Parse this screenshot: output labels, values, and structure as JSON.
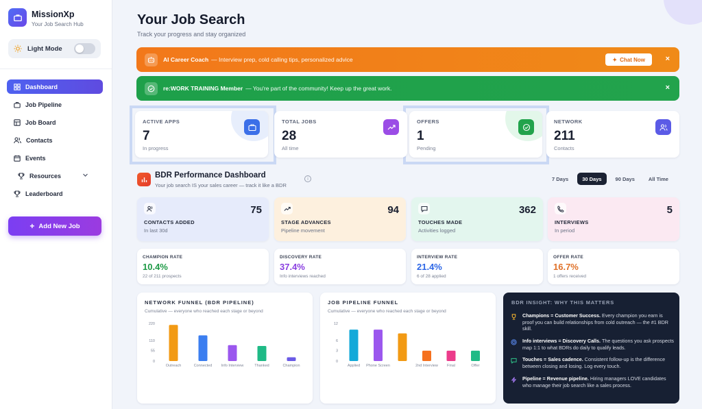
{
  "sidebar": {
    "brand": "MissionXp",
    "brand_sub": "Your Job Search Hub",
    "mode_label": "Light Mode",
    "items": [
      {
        "label": "Dashboard",
        "icon": "dashboard-icon"
      },
      {
        "label": "Job Pipeline",
        "icon": "briefcase-icon"
      },
      {
        "label": "Job Board",
        "icon": "board-icon"
      },
      {
        "label": "Contacts",
        "icon": "users-icon"
      },
      {
        "label": "Events",
        "icon": "calendar-icon"
      },
      {
        "label": "Resources",
        "icon": "trophy-icon"
      },
      {
        "label": "Leaderboard",
        "icon": "trophy-icon"
      }
    ],
    "add_button": "Add New Job"
  },
  "header": {
    "title": "Your Job Search",
    "subtitle": "Track your progress and stay organized"
  },
  "banners": {
    "coach": {
      "title": "AI Career Coach",
      "text": "— Interview prep, cold calling tips, personalized advice",
      "button": "Chat Now",
      "close": "×"
    },
    "member": {
      "title": "re:WORK TRAINING Member",
      "text": "— You're part of the community! Keep up the great work.",
      "close": "×"
    }
  },
  "stats": [
    {
      "label": "ACTIVE APPS",
      "value": "7",
      "sub": "In progress",
      "color": "#3b6fe8"
    },
    {
      "label": "TOTAL JOBS",
      "value": "28",
      "sub": "All time",
      "color": "#9b4de6"
    },
    {
      "label": "OFFERS",
      "value": "1",
      "sub": "Pending",
      "color": "#22a34c"
    },
    {
      "label": "NETWORK",
      "value": "211",
      "sub": "Contacts",
      "color": "#5b5be6"
    }
  ],
  "bdr": {
    "title": "BDR Performance Dashboard",
    "subtitle": "Your job search IS your sales career — track it like a BDR",
    "info": "i",
    "ranges": [
      "7 Days",
      "30 Days",
      "90 Days",
      "All Time"
    ],
    "selected_range": "30 Days"
  },
  "metrics": [
    {
      "label": "CONTACTS ADDED",
      "value": "75",
      "sub": "In last 30d",
      "bg": "#e6ebfb"
    },
    {
      "label": "STAGE ADVANCES",
      "value": "94",
      "sub": "Pipeline movement",
      "bg": "#fdf0de"
    },
    {
      "label": "TOUCHES MADE",
      "value": "362",
      "sub": "Activities logged",
      "bg": "#e3f6ee"
    },
    {
      "label": "INTERVIEWS",
      "value": "5",
      "sub": "In period",
      "bg": "#fbe9f2"
    }
  ],
  "rates": [
    {
      "label": "CHAMPION RATE",
      "value": "10.4%",
      "sub": "22 of 211 prospects",
      "color": "#1e9a46"
    },
    {
      "label": "DISCOVERY RATE",
      "value": "37.4%",
      "sub": "Info interviews reached",
      "color": "#8a3fe0"
    },
    {
      "label": "INTERVIEW RATE",
      "value": "21.4%",
      "sub": "6 of 28 applied",
      "color": "#2d67e6"
    },
    {
      "label": "OFFER RATE",
      "value": "16.7%",
      "sub": "1 offers received",
      "color": "#e0722a"
    }
  ],
  "chart_data": [
    {
      "type": "bar",
      "title": "NETWORK FUNNEL (BDR PIPELINE)",
      "subtitle": "Cumulative — everyone who reached each stage or beyond",
      "categories": [
        "Outreach",
        "Connected",
        "Info Interview",
        "Thanked",
        "Champion"
      ],
      "values": [
        211,
        150,
        93,
        88,
        22
      ],
      "colors": [
        "#f29a14",
        "#3b7ef0",
        "#9b57ee",
        "#1fba86",
        "#6a5ae6"
      ],
      "yticks": [
        "220",
        "110",
        "55",
        "0"
      ],
      "ylim": [
        0,
        220
      ]
    },
    {
      "type": "bar",
      "title": "JOB PIPELINE FUNNEL",
      "subtitle": "Cumulative — everyone who reached each stage or beyond",
      "categories": [
        "Applied",
        "Phone Screen",
        "",
        "2nd Interview",
        "Final",
        "Offer"
      ],
      "values": [
        10,
        10,
        8.8,
        3.3,
        3.3,
        3.3
      ],
      "colors": [
        "#13a9d9",
        "#9b57ee",
        "#f29a14",
        "#f5711f",
        "#ec3c8b",
        "#1fba86"
      ],
      "yticks": [
        "12",
        "6",
        "3",
        "0"
      ],
      "ylim": [
        0,
        12
      ]
    }
  ],
  "insight": {
    "title": "BDR INSIGHT: WHY THIS MATTERS",
    "rows": [
      {
        "bold": "Champions = Customer Success.",
        "text": "Every champion you earn is proof you can build relationships from cold outreach — the #1 BDR skill."
      },
      {
        "bold": "Info interviews = Discovery Calls.",
        "text": "The questions you ask prospects map 1:1 to what BDRs do daily to qualify leads."
      },
      {
        "bold": "Touches = Sales cadence.",
        "text": "Consistent follow-up is the difference between closing and losing. Log every touch."
      },
      {
        "bold": "Pipeline = Revenue pipeline.",
        "text": "Hiring managers LOVE candidates who manage their job search like a sales process."
      }
    ]
  }
}
